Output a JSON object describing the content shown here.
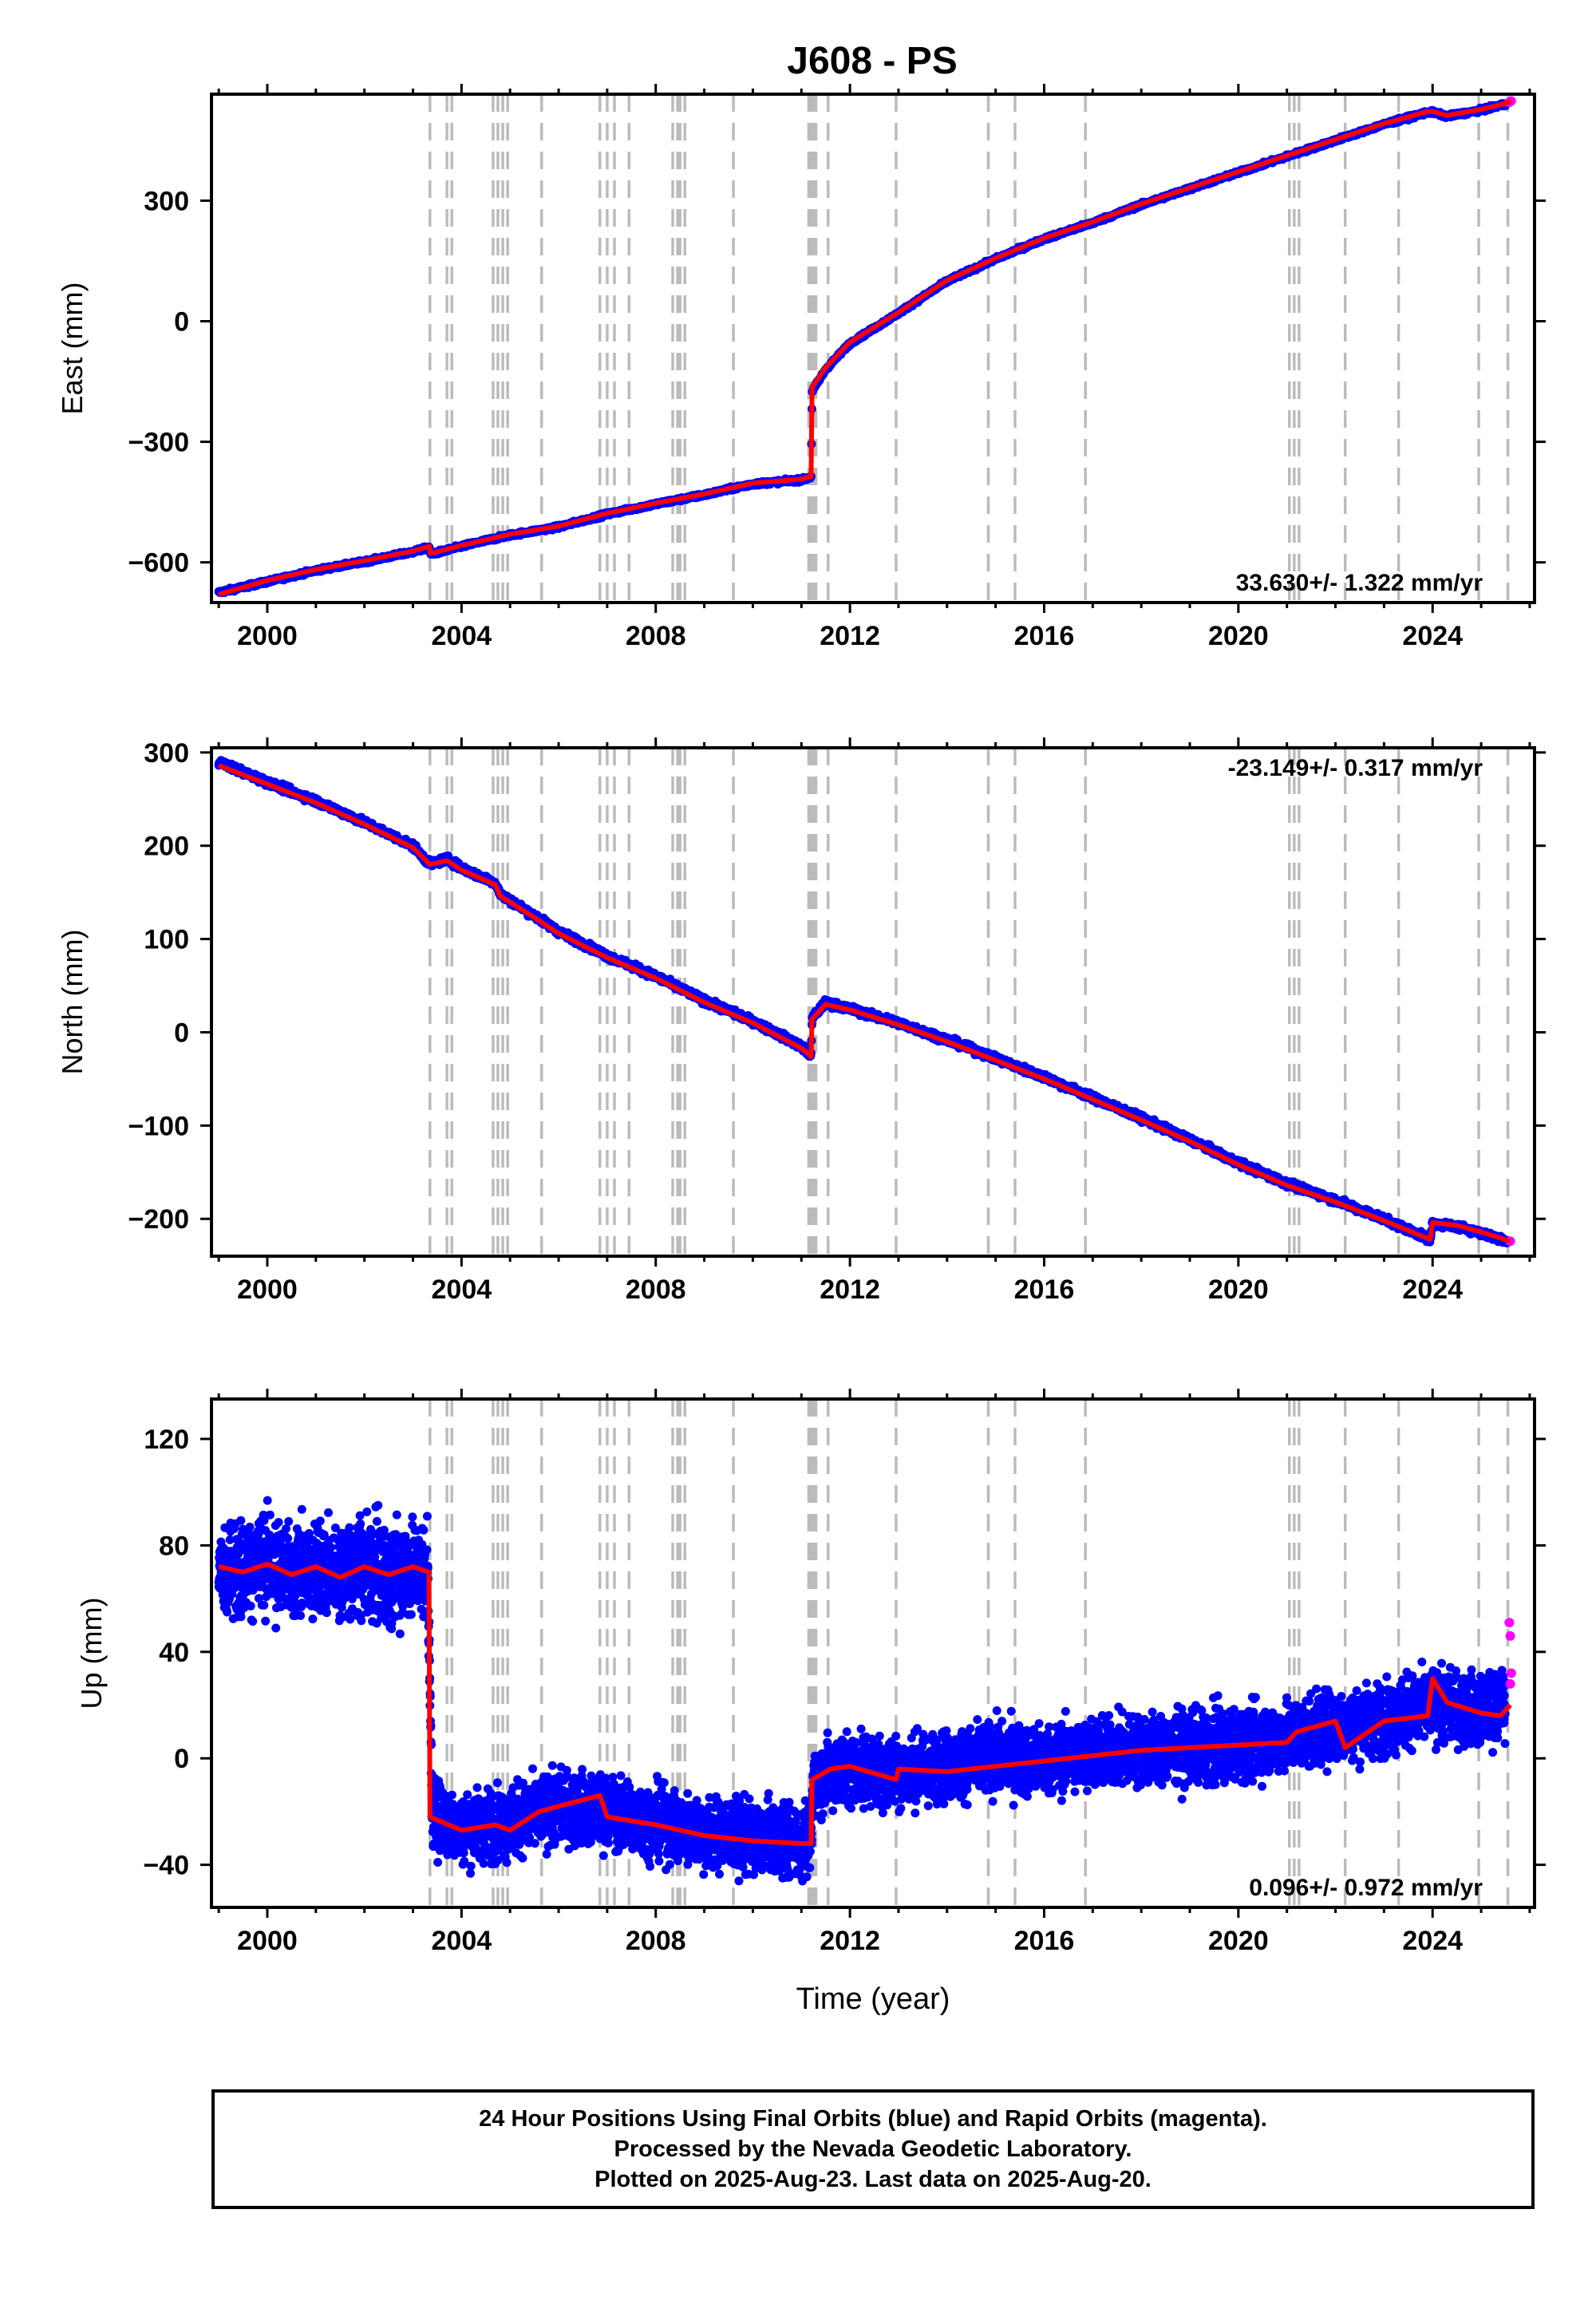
{
  "title": "J608 - PS",
  "colors": {
    "final": "#0000ff",
    "rapid": "#ff00ff",
    "model": "#ff0000",
    "event_line": "#bbbbbb"
  },
  "event_years": [
    2003.35,
    2003.7,
    2003.8,
    2004.65,
    2004.75,
    2004.85,
    2004.95,
    2005.65,
    2006.85,
    2007.0,
    2007.15,
    2007.45,
    2008.35,
    2008.45,
    2008.5,
    2008.6,
    2009.6,
    2011.15,
    2011.2,
    2011.25,
    2011.3,
    2011.55,
    2012.95,
    2014.85,
    2015.4,
    2016.85,
    2021.05,
    2021.15,
    2021.25,
    2022.2,
    2023.3,
    2024.95,
    2025.55
  ],
  "chart_data": [
    {
      "type": "scatter",
      "component": "east",
      "ylabel": "East (mm)",
      "xlim": [
        1998.85,
        2026.1
      ],
      "ylim": [
        -700,
        565
      ],
      "xticks": [
        2000,
        2004,
        2008,
        2012,
        2016,
        2020,
        2024
      ],
      "yticks": [
        -600,
        -300,
        0,
        300
      ],
      "ytick_labels": [
        "−600",
        "−300",
        "0",
        "300"
      ],
      "rate_text": "33.630+/- 1.322 mm/yr",
      "rate_position": "bottom-right",
      "series": [
        {
          "kind": "final",
          "x": [
            1999.0,
            2000.0,
            2001.0,
            2002.0,
            2003.0,
            2003.34,
            2003.36,
            2004.0,
            2005.0,
            2006.0,
            2007.0,
            2008.0,
            2009.0,
            2010.0,
            2011.0,
            2011.2,
            2011.22,
            2011.5,
            2012.0,
            2013.0,
            2014.0,
            2015.0,
            2016.0,
            2017.0,
            2018.0,
            2019.0,
            2020.0,
            2021.0,
            2022.0,
            2023.0,
            2023.9,
            2024.0,
            2024.3,
            2025.0,
            2025.5
          ],
          "y": [
            -675,
            -648,
            -620,
            -598,
            -574,
            -562,
            -580,
            -560,
            -532,
            -512,
            -480,
            -455,
            -432,
            -405,
            -395,
            -388,
            -175,
            -120,
            -55,
            20,
            100,
            155,
            205,
            245,
            290,
            330,
            370,
            410,
            450,
            490,
            520,
            520,
            510,
            525,
            540
          ]
        },
        {
          "kind": "rapid",
          "x": [
            2025.58,
            2025.62
          ],
          "y": [
            545,
            548
          ]
        }
      ],
      "model": {
        "x": [
          1999.0,
          2000.0,
          2001.0,
          2002.0,
          2003.0,
          2003.34,
          2003.36,
          2004.0,
          2005.0,
          2006.0,
          2007.0,
          2008.0,
          2009.0,
          2010.0,
          2011.0,
          2011.2,
          2011.22,
          2011.5,
          2012.0,
          2013.0,
          2014.0,
          2015.0,
          2016.0,
          2017.0,
          2018.0,
          2019.0,
          2020.0,
          2021.0,
          2022.0,
          2023.0,
          2023.9,
          2024.0,
          2024.3,
          2025.0,
          2025.5,
          2025.62
        ],
        "y": [
          -680,
          -645,
          -618,
          -596,
          -572,
          -560,
          -578,
          -558,
          -530,
          -510,
          -478,
          -453,
          -430,
          -403,
          -393,
          -386,
          -165,
          -115,
          -52,
          22,
          102,
          157,
          207,
          247,
          292,
          332,
          372,
          412,
          452,
          492,
          522,
          522,
          512,
          527,
          542,
          548
        ]
      }
    },
    {
      "type": "scatter",
      "component": "north",
      "ylabel": "North (mm)",
      "xlim": [
        1998.85,
        2026.1
      ],
      "ylim": [
        -240,
        305
      ],
      "xticks": [
        2000,
        2004,
        2008,
        2012,
        2016,
        2020,
        2024
      ],
      "yticks": [
        -200,
        -100,
        0,
        100,
        200,
        300
      ],
      "ytick_labels": [
        "−200",
        "−100",
        "0",
        "100",
        "200",
        "300"
      ],
      "rate_text": "-23.149+/- 0.317 mm/yr",
      "rate_position": "top-right",
      "series": [
        {
          "kind": "final",
          "x": [
            1999.0,
            2000.0,
            2001.0,
            2002.0,
            2003.0,
            2003.35,
            2003.7,
            2004.0,
            2004.7,
            2004.8,
            2005.5,
            2006.0,
            2007.0,
            2008.0,
            2009.0,
            2010.0,
            2011.0,
            2011.2,
            2011.22,
            2011.5,
            2012.0,
            2013.0,
            2014.0,
            2015.0,
            2016.0,
            2017.0,
            2018.0,
            2019.0,
            2020.0,
            2021.0,
            2022.0,
            2023.0,
            2023.95,
            2024.0,
            2024.5,
            2025.0,
            2025.55
          ],
          "y": [
            290,
            268,
            248,
            225,
            200,
            180,
            186,
            176,
            160,
            148,
            125,
            108,
            82,
            60,
            34,
            12,
            -15,
            -25,
            15,
            32,
            25,
            10,
            -8,
            -28,
            -48,
            -70,
            -92,
            -115,
            -140,
            -162,
            -180,
            -200,
            -222,
            -205,
            -208,
            -215,
            -225
          ]
        },
        {
          "kind": "rapid",
          "x": [
            2025.6
          ],
          "y": [
            -224
          ]
        }
      ],
      "model": {
        "x": [
          1999.0,
          2000.0,
          2001.0,
          2002.0,
          2003.0,
          2003.35,
          2003.7,
          2004.0,
          2004.7,
          2004.8,
          2005.5,
          2006.0,
          2007.0,
          2008.0,
          2009.0,
          2010.0,
          2011.0,
          2011.2,
          2011.22,
          2011.5,
          2012.0,
          2013.0,
          2014.0,
          2015.0,
          2016.0,
          2017.0,
          2018.0,
          2019.0,
          2020.0,
          2021.0,
          2022.0,
          2023.0,
          2023.95,
          2024.0,
          2024.5,
          2025.0,
          2025.6
        ],
        "y": [
          286,
          266,
          246,
          223,
          198,
          180,
          184,
          174,
          158,
          146,
          123,
          106,
          80,
          58,
          32,
          10,
          -17,
          -26,
          14,
          30,
          24,
          8,
          -10,
          -30,
          -50,
          -72,
          -94,
          -117,
          -142,
          -164,
          -182,
          -202,
          -222,
          -204,
          -207,
          -214,
          -224
        ]
      }
    },
    {
      "type": "scatter",
      "component": "up",
      "ylabel": "Up (mm)",
      "xlabel": "Time (year)",
      "xlim": [
        1998.85,
        2026.1
      ],
      "ylim": [
        -56,
        135
      ],
      "xticks": [
        2000,
        2004,
        2008,
        2012,
        2016,
        2020,
        2024
      ],
      "yticks": [
        -40,
        0,
        40,
        80,
        120
      ],
      "ytick_labels": [
        "−40",
        "0",
        "40",
        "80",
        "120"
      ],
      "rate_text": "0.096+/- 0.972 mm/yr",
      "rate_position": "bottom-right",
      "series": [
        {
          "kind": "final",
          "x": [
            1999.0,
            1999.5,
            2000.0,
            2000.5,
            2001.0,
            2001.5,
            2002.0,
            2002.5,
            2003.0,
            2003.3,
            2003.4,
            2004.0,
            2005.0,
            2006.0,
            2007.0,
            2008.0,
            2009.0,
            2010.0,
            2011.0,
            2011.2,
            2011.25,
            2012.0,
            2013.0,
            2014.0,
            2015.0,
            2016.0,
            2017.0,
            2018.0,
            2019.0,
            2020.0,
            2021.0,
            2022.0,
            2023.0,
            2024.0,
            2025.0,
            2025.5
          ],
          "y": [
            70,
            72,
            73,
            70,
            71,
            69,
            72,
            68,
            71,
            70,
            -22,
            -26,
            -24,
            -18,
            -20,
            -24,
            -28,
            -30,
            -31,
            -31,
            -8,
            -4,
            -5,
            -3,
            0,
            -1,
            2,
            3,
            4,
            5,
            8,
            12,
            15,
            20,
            18,
            20
          ]
        },
        {
          "kind": "rapid",
          "x": [
            2025.58,
            2025.6,
            2025.62,
            2025.6
          ],
          "y": [
            51,
            46,
            32,
            28
          ]
        }
      ],
      "model": {
        "x": [
          1999.0,
          1999.5,
          2000.0,
          2000.5,
          2001.0,
          2001.5,
          2002.0,
          2002.5,
          2003.0,
          2003.33,
          2003.35,
          2004.0,
          2004.7,
          2005.0,
          2005.6,
          2006.0,
          2006.85,
          2007.0,
          2008.0,
          2009.0,
          2010.0,
          2011.0,
          2011.2,
          2011.22,
          2011.6,
          2012.0,
          2012.95,
          2013.0,
          2014.0,
          2015.0,
          2016.0,
          2017.0,
          2018.0,
          2019.0,
          2020.0,
          2021.0,
          2021.2,
          2022.0,
          2022.2,
          2023.0,
          2023.9,
          2024.0,
          2024.3,
          2025.0,
          2025.4,
          2025.6
        ],
        "y": [
          72,
          70,
          73,
          69,
          72,
          68,
          72,
          69,
          72,
          70,
          -22,
          -27,
          -25,
          -27,
          -20,
          -18,
          -14,
          -22,
          -25,
          -29,
          -31,
          -32,
          -32,
          -8,
          -4,
          -3,
          -8,
          -4,
          -5,
          -3,
          -1,
          1,
          3,
          4,
          5,
          6,
          10,
          14,
          4,
          14,
          16,
          30,
          21,
          17,
          16,
          20
        ]
      }
    }
  ],
  "caption": {
    "line1": "24 Hour Positions Using Final Orbits (blue) and Rapid Orbits (magenta).",
    "line2": "Processed by the Nevada Geodetic Laboratory.",
    "line3": "Plotted on 2025-Aug-23. Last data on 2025-Aug-20."
  }
}
